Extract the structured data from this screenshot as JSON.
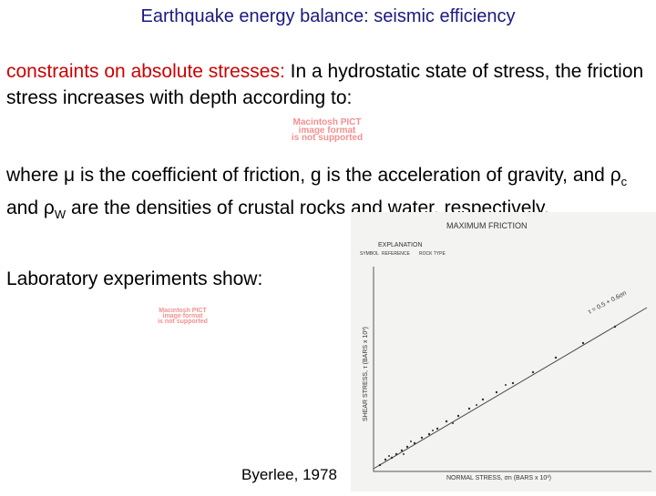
{
  "title": "Earthquake energy balance: seismic efficiency",
  "intro": {
    "lead": "constraints on absolute stresses:",
    "text": "In a hydrostatic state of stress, the friction stress increases with depth according to:"
  },
  "placeholder_1": [
    "Macintosh PICT",
    "image format",
    "is not supported"
  ],
  "definitions": [
    "where",
    "μ",
    "is the coefficient of friction, g is the acceleration of gravity, and",
    "ρ",
    "c",
    "and",
    "ρ",
    "W",
    "are the densities of crustal rocks and water, respectively."
  ],
  "lab": "Laboratory experiments show:",
  "placeholder_2": [
    "Macintosh PICT",
    "image format",
    "is not supported"
  ],
  "citation": "Byerlee, 1978",
  "figure": {
    "title": "MAXIMUM FRICTION",
    "legend_title": "EXPLANATION",
    "legend_header": [
      "SYMBOL",
      "REFERENCE",
      "ROCK TYPE"
    ],
    "y_label": "SHEAR STRESS, τ (BARS x 10³)",
    "x_label": "NORMAL STRESS, σn (BARS x 10³)",
    "fit_label": "τ = 0.5 + 0.6σn"
  }
}
